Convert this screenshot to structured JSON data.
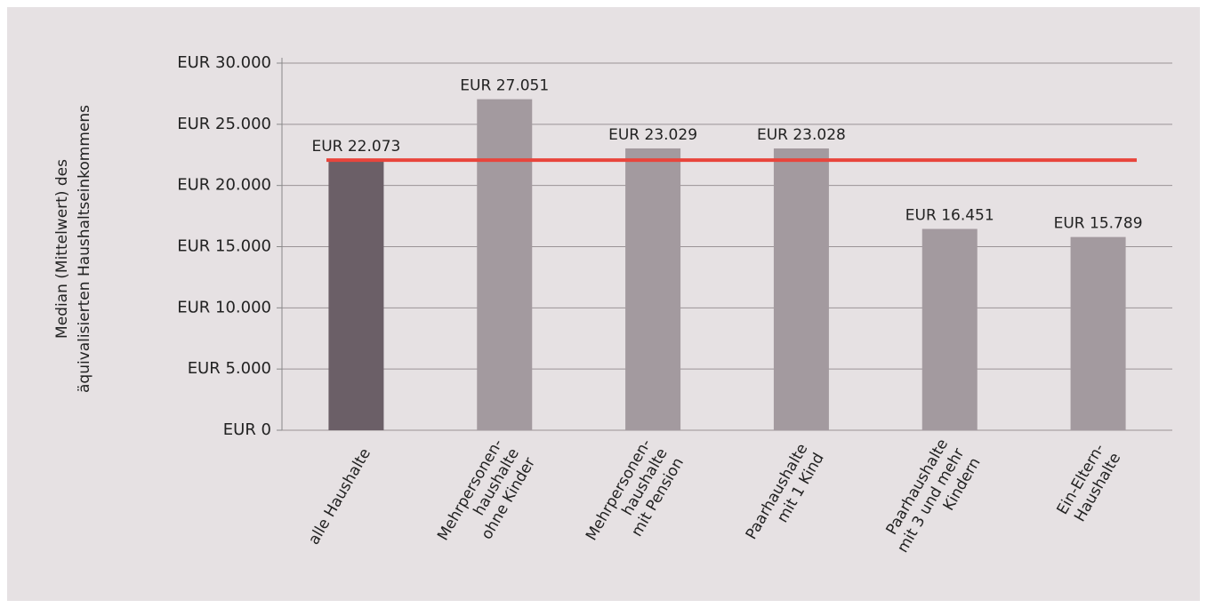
{
  "chart_data": {
    "type": "bar",
    "y_label": [
      "Median (Mittelwert) des",
      "äquivalisierten Haushaltseinkommens"
    ],
    "categories": [
      [
        "alle Haushalte"
      ],
      [
        "Mehrpersonen-",
        "haushalte",
        "ohne Kinder"
      ],
      [
        "Mehrpersonen-",
        "haushalte",
        "mit Pension"
      ],
      [
        "Paarhaushalte",
        "mit 1 Kind"
      ],
      [
        "Paarhaushalte",
        "mit 3 und mehr",
        "Kindern"
      ],
      [
        "Ein-Eltern-",
        "Haushalte"
      ]
    ],
    "values": [
      22073,
      27051,
      23029,
      23028,
      16451,
      15789
    ],
    "value_labels": [
      "EUR 22.073",
      "EUR 27.051",
      "EUR 23.029",
      "EUR 23.028",
      "EUR 16.451",
      "EUR 15.789"
    ],
    "colors": [
      "#6b5f67",
      "#a39a9f",
      "#a39a9f",
      "#a39a9f",
      "#a39a9f",
      "#a39a9f"
    ],
    "reference_line": {
      "value": 22073,
      "color": "#e8453c"
    },
    "ylim": [
      0,
      30000
    ],
    "yticks": [
      {
        "value": 0,
        "label": "EUR 0"
      },
      {
        "value": 5000,
        "label": "EUR 5.000"
      },
      {
        "value": 10000,
        "label": "EUR 10.000"
      },
      {
        "value": 15000,
        "label": "EUR 15.000"
      },
      {
        "value": 20000,
        "label": "EUR 20.000"
      },
      {
        "value": 25000,
        "label": "EUR 25.000"
      },
      {
        "value": 30000,
        "label": "EUR 30.000"
      }
    ],
    "grid": true
  }
}
